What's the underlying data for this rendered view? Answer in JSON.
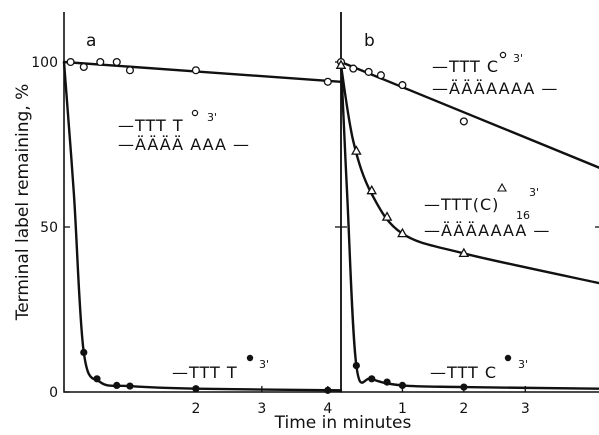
{
  "chart_data": [
    {
      "type": "scatter",
      "panel_label": "a",
      "ylabel": "Terminal label remaining, %",
      "xlim": [
        0,
        4.2
      ],
      "ylim": [
        0,
        100
      ],
      "x_ticks": [
        "2",
        "3",
        "4"
      ],
      "y_ticks": [
        "0",
        "50",
        "100"
      ],
      "series": [
        {
          "marker": "open-circle",
          "points": [
            [
              0.1,
              100
            ],
            [
              0.3,
              98.5
            ],
            [
              0.55,
              100
            ],
            [
              0.8,
              100
            ],
            [
              1.0,
              97.5
            ],
            [
              2.0,
              97.5
            ],
            [
              4.0,
              94
            ]
          ],
          "fit": [
            [
              0,
              100
            ],
            [
              4.2,
              94
            ]
          ],
          "label": {
            "line1": "—TTT T",
            "sup": "3'",
            "line2": "—ÄÄÄÄ AAA —"
          }
        },
        {
          "marker": "filled-circle",
          "points": [
            [
              0.3,
              12
            ],
            [
              0.5,
              4
            ],
            [
              0.8,
              2
            ],
            [
              1.0,
              1.8
            ],
            [
              2.0,
              1
            ],
            [
              4.0,
              0.5
            ]
          ],
          "fit": [
            [
              0,
              100
            ],
            [
              0.15,
              60
            ],
            [
              0.3,
              12
            ],
            [
              0.55,
              3
            ],
            [
              1.0,
              1.8
            ],
            [
              2.0,
              1
            ],
            [
              4.2,
              0.5
            ]
          ],
          "label": {
            "line1": "—TTT T",
            "sup": "3'"
          }
        }
      ]
    },
    {
      "type": "scatter",
      "panel_label": "b",
      "xlabel": "Time in minutes",
      "xlim": [
        0,
        4.2
      ],
      "ylim": [
        0,
        100
      ],
      "x_ticks": [
        "1",
        "2",
        "3"
      ],
      "y_ticks": [
        "50"
      ],
      "series": [
        {
          "marker": "open-circle",
          "points": [
            [
              0,
              100
            ],
            [
              0.2,
              98
            ],
            [
              0.45,
              97
            ],
            [
              0.65,
              96
            ],
            [
              1.0,
              93
            ],
            [
              2.0,
              82
            ]
          ],
          "fit": [
            [
              0,
              100
            ],
            [
              4.2,
              68
            ]
          ],
          "label": {
            "line1": "—TTT C",
            "sup": "3'",
            "line2": "—ÄÄÄAAAA —"
          }
        },
        {
          "marker": "open-triangle",
          "points": [
            [
              0,
              99
            ],
            [
              0.25,
              73
            ],
            [
              0.5,
              61
            ],
            [
              0.75,
              53
            ],
            [
              1.0,
              48
            ],
            [
              2.0,
              42
            ]
          ],
          "fit": [
            [
              0,
              99
            ],
            [
              0.2,
              76
            ],
            [
              0.5,
              60
            ],
            [
              1.0,
              48
            ],
            [
              2.0,
              42
            ],
            [
              4.2,
              33
            ]
          ],
          "label": {
            "line1": "—TTT(C)",
            "sub": "16",
            "sup": "3'",
            "line2": "—ÄÄÄAAAA —"
          }
        },
        {
          "marker": "filled-circle",
          "points": [
            [
              0.25,
              8
            ],
            [
              0.5,
              4
            ],
            [
              0.75,
              3
            ],
            [
              1.0,
              2
            ],
            [
              2.0,
              1.5
            ]
          ],
          "fit": [
            [
              0,
              100
            ],
            [
              0.1,
              60
            ],
            [
              0.25,
              8
            ],
            [
              0.5,
              4
            ],
            [
              1.0,
              2
            ],
            [
              2.0,
              1.5
            ],
            [
              4.2,
              1
            ]
          ],
          "label": {
            "line1": "—TTT C",
            "sup": "3'"
          }
        }
      ]
    }
  ]
}
